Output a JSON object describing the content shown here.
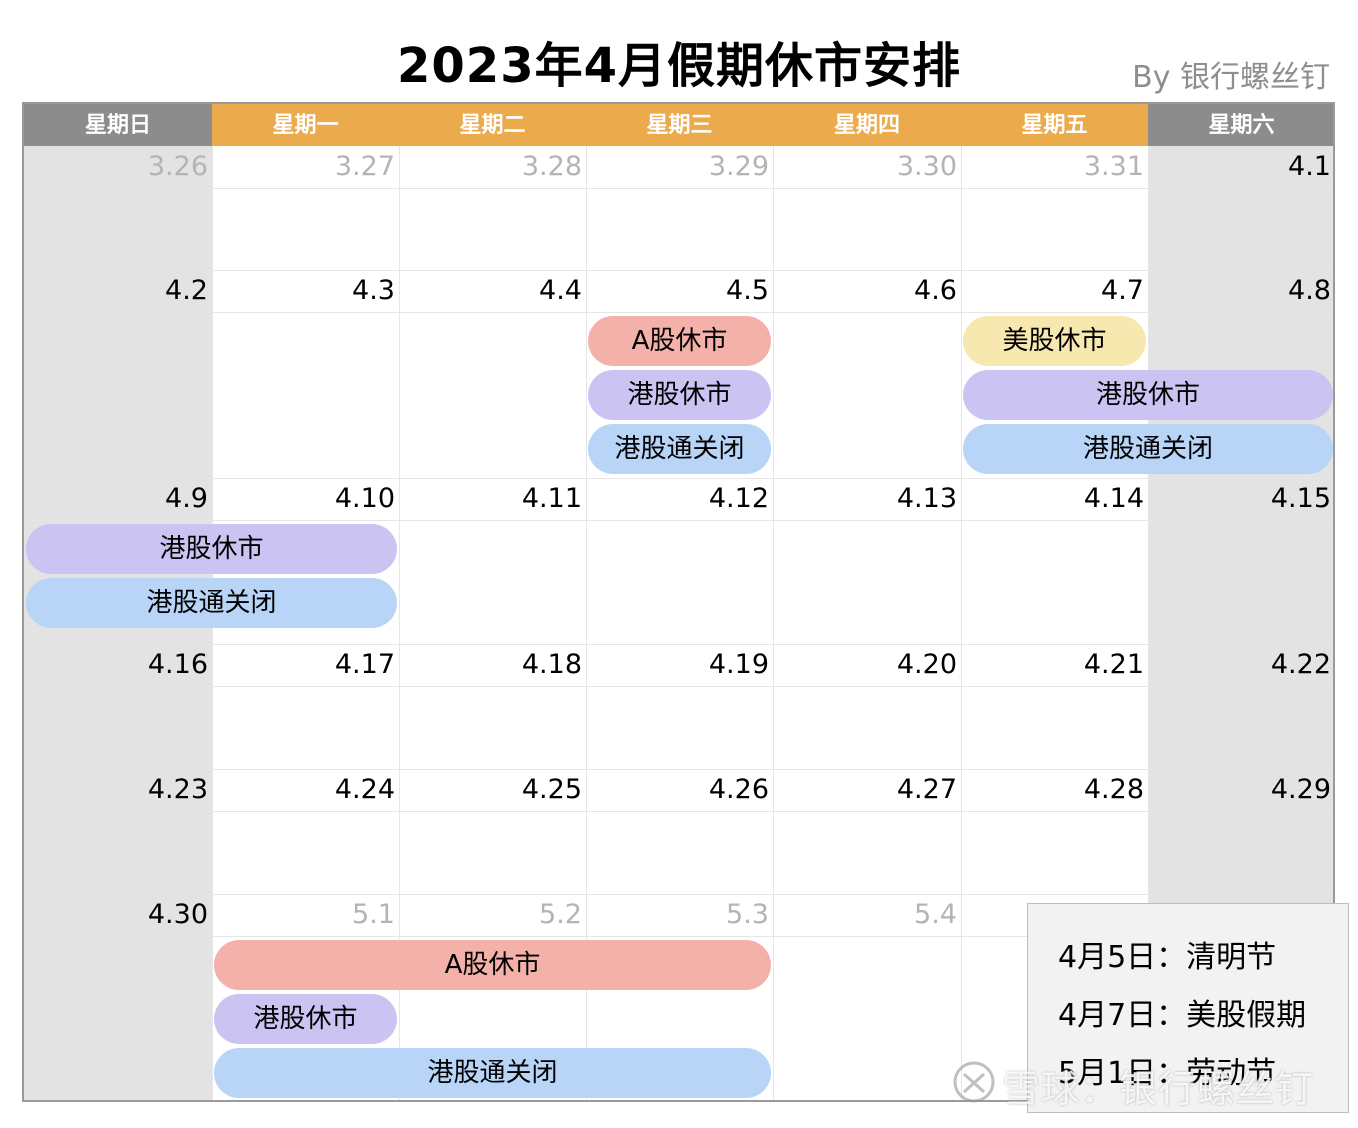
{
  "title": "2023年4月假期休市安排",
  "byline": "By 银行螺丝钉",
  "weekdays": [
    "星期日",
    "星期一",
    "星期二",
    "星期三",
    "星期四",
    "星期五",
    "星期六"
  ],
  "weeks": [
    [
      "3.26",
      "3.27",
      "3.28",
      "3.29",
      "3.30",
      "3.31",
      "4.1"
    ],
    [
      "4.2",
      "4.3",
      "4.4",
      "4.5",
      "4.6",
      "4.7",
      "4.8"
    ],
    [
      "4.9",
      "4.10",
      "4.11",
      "4.12",
      "4.13",
      "4.14",
      "4.15"
    ],
    [
      "4.16",
      "4.17",
      "4.18",
      "4.19",
      "4.20",
      "4.21",
      "4.22"
    ],
    [
      "4.23",
      "4.24",
      "4.25",
      "4.26",
      "4.27",
      "4.28",
      "4.29"
    ],
    [
      "4.30",
      "5.1",
      "5.2",
      "5.3",
      "5.4",
      "",
      ""
    ]
  ],
  "events": [
    {
      "label": "A股休市",
      "kind": "a",
      "week": 1,
      "start": 3,
      "end": 3,
      "row": 0
    },
    {
      "label": "港股休市",
      "kind": "hk",
      "week": 1,
      "start": 3,
      "end": 3,
      "row": 1
    },
    {
      "label": "港股通关闭",
      "kind": "conn",
      "week": 1,
      "start": 3,
      "end": 3,
      "row": 2
    },
    {
      "label": "美股休市",
      "kind": "us",
      "week": 1,
      "start": 5,
      "end": 5,
      "row": 0
    },
    {
      "label": "港股休市",
      "kind": "hk",
      "week": 1,
      "start": 5,
      "end": 6,
      "row": 1
    },
    {
      "label": "港股通关闭",
      "kind": "conn",
      "week": 1,
      "start": 5,
      "end": 6,
      "row": 2
    },
    {
      "label": "港股休市",
      "kind": "hk",
      "week": 2,
      "start": 0,
      "end": 1,
      "row": 0
    },
    {
      "label": "港股通关闭",
      "kind": "conn",
      "week": 2,
      "start": 0,
      "end": 1,
      "row": 1
    },
    {
      "label": "A股休市",
      "kind": "a",
      "week": 5,
      "start": 1,
      "end": 3,
      "row": 0
    },
    {
      "label": "港股休市",
      "kind": "hk",
      "week": 5,
      "start": 1,
      "end": 1,
      "row": 1
    },
    {
      "label": "港股通关闭",
      "kind": "conn",
      "week": 5,
      "start": 1,
      "end": 3,
      "row": 2
    }
  ],
  "legend": [
    "4月5日：清明节",
    "4月7日：美股假期",
    "5月1日：劳动节"
  ],
  "watermark": "雪球：银行螺丝钉",
  "colors": {
    "weekday_header": "#ebab4d",
    "weekend_header": "#8c8c8c",
    "a_share_closed": "#f3b1a9",
    "hk_closed": "#cbc4f3",
    "connect_closed": "#b8d4f6",
    "us_closed": "#f7e8b0"
  }
}
